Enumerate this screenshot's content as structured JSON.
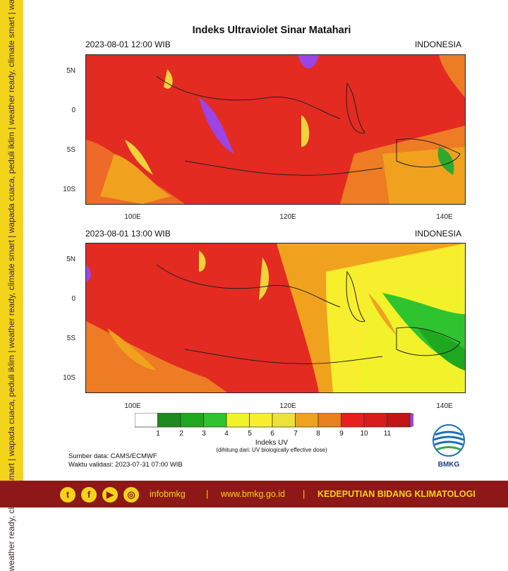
{
  "sidebar": {
    "tagline": "weather ready, climate smart | wapada cuaca, peduli iklim | weather ready, climate smart | wapada cuaca, peduli iklim | weather ready, climate smart | wapada cuaca, peduli iklim"
  },
  "title": "Indeks Ultraviolet Sinar Matahari",
  "panels": [
    {
      "datetime": "2023-08-01  12:00 WIB",
      "region": "INDONESIA"
    },
    {
      "datetime": "2023-08-01  13:00 WIB",
      "region": "INDONESIA"
    }
  ],
  "axes": {
    "lat_ticks": [
      "5N",
      "0",
      "5S",
      "10S"
    ],
    "lon_ticks": [
      "100E",
      "120E",
      "140E"
    ]
  },
  "colorbar": {
    "labels": [
      "1",
      "2",
      "3",
      "4",
      "5",
      "6",
      "7",
      "8",
      "9",
      "10",
      "11"
    ],
    "colors": [
      "#ffffff",
      "#1f8a1f",
      "#1fa81f",
      "#2fc42f",
      "#f2f22a",
      "#f7ef2e",
      "#ece23a",
      "#f0a21e",
      "#ea7f1d",
      "#e81f1f",
      "#d91b1b",
      "#c21616",
      "#9b45e6"
    ],
    "title": "Indeks UV",
    "subtitle": "(dihitung dari: UV biologically effective dose)"
  },
  "source": {
    "data": "Sumber data: CAMS/ECMWF",
    "validity": "Waktu validasi: 2023-07-31 07:00 WIB"
  },
  "logo": {
    "text": "BMKG"
  },
  "footer": {
    "icons": [
      "twitter-icon",
      "facebook-icon",
      "youtube-icon",
      "instagram-icon"
    ],
    "handle": "infobmkg",
    "site": "www.bmkg.go.id",
    "division": "KEDEPUTIAN BIDANG KLIMATOLOGI"
  }
}
